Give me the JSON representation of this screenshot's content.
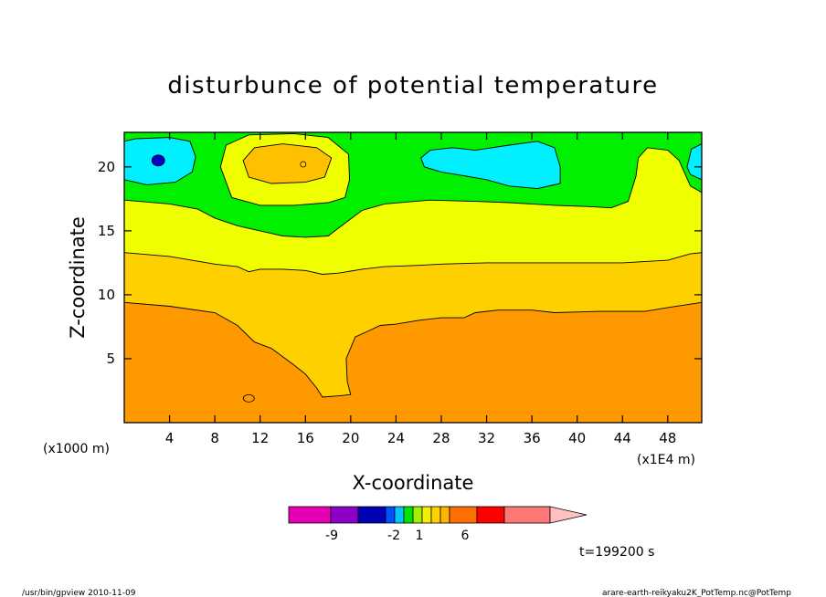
{
  "chart_data": {
    "type": "heatmap",
    "title": "disturbunce of potential temperature",
    "xlabel": "X-coordinate",
    "ylabel": "Z-coordinate",
    "x_units": "(x1E4 m)",
    "z_units": "(x1000 m)",
    "xlim": [
      0,
      51
    ],
    "ylim": [
      0,
      22.7
    ],
    "x_ticks": [
      4,
      8,
      12,
      16,
      20,
      24,
      28,
      32,
      36,
      40,
      44,
      48
    ],
    "y_ticks": [
      5,
      10,
      15,
      20
    ],
    "x_tick_labels": [
      "4",
      "8",
      "12",
      "16",
      "20",
      "24",
      "28",
      "32",
      "36",
      "40",
      "44",
      "48"
    ],
    "y_tick_labels": [
      "5",
      "10",
      "15",
      "20"
    ],
    "colorbar_labels": [
      "-9",
      "-2",
      "1",
      "6"
    ],
    "time_label": "t=199200 s",
    "colors": {
      "orange": "#ff9900",
      "gold": "#ffd000",
      "yellow": "#f0ff00",
      "green": "#00f000",
      "cyan": "#00f0ff",
      "blue": "#0040ff",
      "darkblue": "#0000c8",
      "light_orange": "#ffc000"
    },
    "colorbar_colors": [
      "#e600b4",
      "#8c00c8",
      "#0000b4",
      "#0050ff",
      "#00c8ff",
      "#00e600",
      "#a0f000",
      "#f0f000",
      "#ffd200",
      "#ffb400",
      "#ff6e00",
      "#ff0000",
      "#ff7878",
      "#ffc0c0"
    ],
    "contours": {
      "orange_top": [
        [
          0,
          9.4
        ],
        [
          4,
          9.1
        ],
        [
          8,
          8.6
        ],
        [
          10,
          7.6
        ],
        [
          11.5,
          6.3
        ],
        [
          13,
          5.8
        ],
        [
          15,
          4.5
        ],
        [
          16,
          3.8
        ],
        [
          17,
          2.7
        ],
        [
          17.5,
          2.0
        ],
        [
          19,
          2.1
        ],
        [
          20,
          2.2
        ],
        [
          19.7,
          3.2
        ],
        [
          19.6,
          5.0
        ],
        [
          20.4,
          6.7
        ],
        [
          21.4,
          7.1
        ],
        [
          22.6,
          7.6
        ],
        [
          24,
          7.7
        ],
        [
          26,
          8.0
        ],
        [
          28,
          8.2
        ],
        [
          30,
          8.2
        ],
        [
          31,
          8.6
        ],
        [
          33,
          8.8
        ],
        [
          36,
          8.8
        ],
        [
          38,
          8.6
        ],
        [
          42,
          8.7
        ],
        [
          46,
          8.7
        ],
        [
          48,
          9.0
        ],
        [
          51,
          9.4
        ]
      ],
      "gold_top": [
        [
          0,
          13.3
        ],
        [
          4,
          13.0
        ],
        [
          8,
          12.4
        ],
        [
          10,
          12.2
        ],
        [
          11,
          11.8
        ],
        [
          12,
          12.0
        ],
        [
          14,
          12.0
        ],
        [
          16,
          11.9
        ],
        [
          17.5,
          11.6
        ],
        [
          19,
          11.7
        ],
        [
          21,
          12.0
        ],
        [
          23,
          12.2
        ],
        [
          26,
          12.3
        ],
        [
          28,
          12.4
        ],
        [
          32,
          12.5
        ],
        [
          36,
          12.5
        ],
        [
          40,
          12.5
        ],
        [
          44,
          12.5
        ],
        [
          48,
          12.7
        ],
        [
          50,
          13.2
        ],
        [
          51,
          13.3
        ]
      ],
      "yellow_top": [
        [
          0,
          17.4
        ],
        [
          4,
          17.1
        ],
        [
          6.5,
          16.7
        ],
        [
          8,
          16.0
        ],
        [
          10,
          15.4
        ],
        [
          12,
          15.0
        ],
        [
          14,
          14.6
        ],
        [
          16,
          14.5
        ],
        [
          18,
          14.6
        ],
        [
          19.5,
          15.6
        ],
        [
          21,
          16.6
        ],
        [
          23,
          17.1
        ],
        [
          27,
          17.4
        ],
        [
          31,
          17.3
        ],
        [
          34,
          17.2
        ],
        [
          38,
          17.0
        ],
        [
          41,
          16.9
        ],
        [
          43,
          16.8
        ],
        [
          44.5,
          17.3
        ],
        [
          45.2,
          19.3
        ],
        [
          45.4,
          20.7
        ],
        [
          46.2,
          21.5
        ],
        [
          48,
          21.3
        ],
        [
          49,
          20.5
        ],
        [
          50,
          18.5
        ],
        [
          51,
          18.0
        ]
      ],
      "cyan_left": [
        [
          0,
          19.0
        ],
        [
          2,
          18.6
        ],
        [
          4.5,
          18.8
        ],
        [
          6,
          19.6
        ],
        [
          6.3,
          20.8
        ],
        [
          5.8,
          22.0
        ],
        [
          4,
          22.3
        ],
        [
          1,
          22.2
        ],
        [
          0,
          22.0
        ]
      ],
      "cyan_mid": [
        [
          26.5,
          20.0
        ],
        [
          28,
          19.6
        ],
        [
          30,
          19.3
        ],
        [
          32,
          19.0
        ],
        [
          34,
          18.5
        ],
        [
          36.5,
          18.3
        ],
        [
          38.5,
          18.7
        ],
        [
          38.5,
          20.0
        ],
        [
          38,
          21.5
        ],
        [
          36.5,
          22.0
        ],
        [
          34,
          21.7
        ],
        [
          31,
          21.3
        ],
        [
          29,
          21.5
        ],
        [
          27,
          21.3
        ],
        [
          26.2,
          20.7
        ]
      ],
      "cyan_right": [
        [
          51,
          19.0
        ],
        [
          50,
          19.4
        ],
        [
          49.7,
          20.0
        ],
        [
          50.1,
          21.4
        ],
        [
          51,
          21.8
        ]
      ],
      "yellow_bump": [
        [
          8.5,
          20.0
        ],
        [
          9,
          21.7
        ],
        [
          11,
          22.5
        ],
        [
          15,
          22.6
        ],
        [
          18,
          22.3
        ],
        [
          19.8,
          21.0
        ],
        [
          19.9,
          19.0
        ],
        [
          19.5,
          17.6
        ],
        [
          18,
          17.2
        ],
        [
          15,
          17.0
        ],
        [
          12,
          17.0
        ],
        [
          9.5,
          17.6
        ]
      ],
      "orange_bump": [
        [
          10.5,
          20.5
        ],
        [
          11.5,
          21.5
        ],
        [
          14,
          21.8
        ],
        [
          17,
          21.5
        ],
        [
          18.3,
          20.7
        ],
        [
          17.7,
          19.2
        ],
        [
          16,
          18.8
        ],
        [
          13,
          18.7
        ],
        [
          11,
          19.2
        ]
      ]
    },
    "markers": {
      "blue_dot": [
        3,
        20.5
      ],
      "orange_dot": [
        15.8,
        20.2
      ],
      "small_closed_contour": [
        11,
        1.9
      ]
    }
  },
  "footer": {
    "left": "/usr/bin/gpview   2010-11-09",
    "right": "arare-earth-reikyaku2K_PotTemp.nc@PotTemp"
  }
}
